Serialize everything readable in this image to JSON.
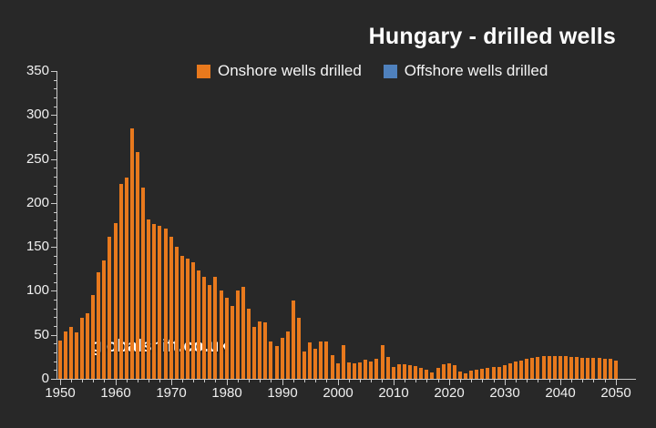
{
  "title": "Hungary - drilled wells",
  "watermark": "globalshift.co.uk",
  "colors": {
    "background": "#282828",
    "text": "#F2F2F2",
    "axis": "#C9C9C9",
    "onshore": "#E8791D",
    "offshore": "#4F81BD"
  },
  "legend": {
    "position": "top-center",
    "items": [
      {
        "label": "Onshore wells drilled",
        "color": "#E8791D"
      },
      {
        "label": "Offshore wells drilled",
        "color": "#4F81BD"
      }
    ]
  },
  "chart_data": {
    "type": "bar",
    "title": "Hungary - drilled wells",
    "xlabel": "",
    "ylabel": "",
    "x_start_year": 1950,
    "x_end_year": 2050,
    "x_tick_labels": [
      "1950",
      "1960",
      "1970",
      "1980",
      "1990",
      "2000",
      "2010",
      "2020",
      "2030",
      "2040",
      "2050"
    ],
    "y_ticks": [
      0,
      50,
      100,
      150,
      200,
      250,
      300,
      350
    ],
    "ylim": [
      0,
      350
    ],
    "grid": false,
    "series": [
      {
        "name": "Onshore wells drilled",
        "color": "#E8791D",
        "values": [
          44,
          54,
          59,
          53,
          69,
          75,
          95,
          121,
          135,
          162,
          177,
          222,
          229,
          285,
          258,
          218,
          181,
          176,
          174,
          171,
          162,
          150,
          140,
          137,
          133,
          123,
          116,
          107,
          116,
          101,
          92,
          83,
          101,
          105,
          80,
          59,
          65,
          64,
          42,
          37,
          47,
          54,
          89,
          69,
          31,
          41,
          34,
          42,
          43,
          27,
          18,
          38,
          19,
          18,
          19,
          22,
          20,
          23,
          38,
          25,
          14,
          17,
          17,
          16,
          15,
          12,
          10,
          7,
          12,
          17,
          18,
          16,
          8,
          6,
          9,
          10,
          11,
          12,
          13,
          14,
          16,
          18,
          20,
          21,
          23,
          24,
          25,
          26,
          26,
          26,
          26,
          26,
          25,
          25,
          24,
          24,
          24,
          24,
          23,
          23,
          21
        ]
      },
      {
        "name": "Offshore wells drilled",
        "color": "#4F81BD",
        "values": [
          0,
          0,
          0,
          0,
          0,
          0,
          0,
          0,
          0,
          0,
          0,
          0,
          0,
          0,
          0,
          0,
          0,
          0,
          0,
          0,
          0,
          0,
          0,
          0,
          0,
          0,
          0,
          0,
          0,
          0,
          0,
          0,
          0,
          0,
          0,
          0,
          0,
          0,
          0,
          0,
          0,
          0,
          0,
          0,
          0,
          0,
          0,
          0,
          0,
          0,
          0,
          0,
          0,
          0,
          0,
          0,
          0,
          0,
          0,
          0,
          0,
          0,
          0,
          0,
          0,
          0,
          0,
          0,
          0,
          0,
          0,
          0,
          0,
          0,
          0,
          0,
          0,
          0,
          0,
          0,
          0,
          0,
          0,
          0,
          0,
          0,
          0,
          0,
          0,
          0,
          0,
          0,
          0,
          0,
          0,
          0,
          0,
          0,
          0,
          0,
          0
        ]
      }
    ]
  }
}
